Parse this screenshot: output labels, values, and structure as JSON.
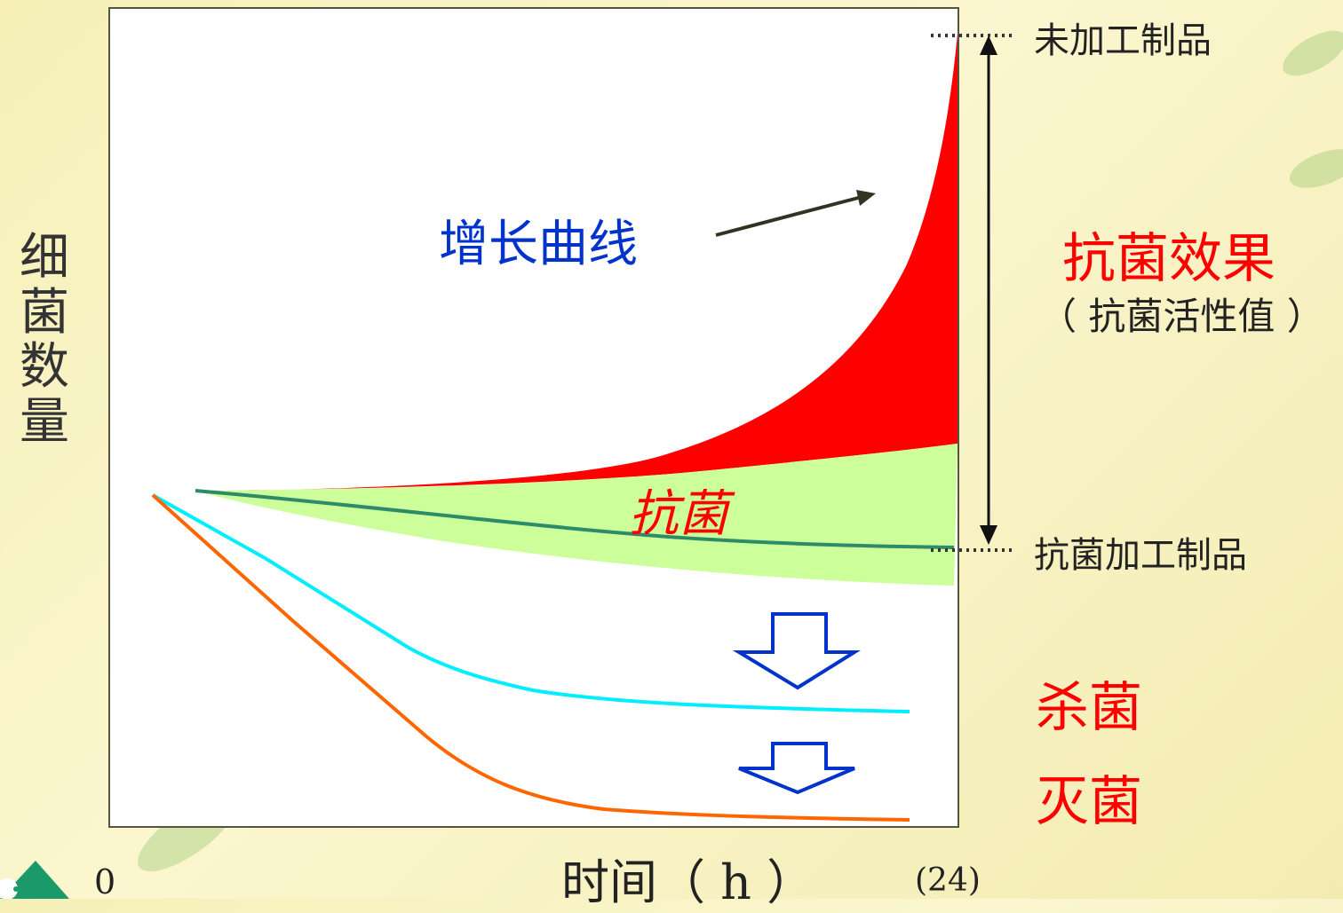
{
  "labels": {
    "untreated": "未加工制品",
    "treated": "抗菌加工制品",
    "antibacterial_effect": "抗菌效果",
    "activity_value": "（ 抗菌活性值 ）",
    "growth_curve": "增长曲线",
    "antibacterial_curve": "抗菌",
    "bactericidal": "杀菌",
    "sterilization": "灭菌"
  },
  "axes": {
    "ylabel": "细菌数量",
    "xlabel": "时间（ h ）",
    "x_start": "0",
    "x_end": "(24)"
  },
  "colors": {
    "growth_area": "#ff0000",
    "antibacterial_area": "#ccff99",
    "antibacterial_line": "#2e8b6a",
    "bactericidal_line": "#00eeff",
    "sterilization_line": "#ff6600",
    "arrow": "#0033cc"
  }
}
